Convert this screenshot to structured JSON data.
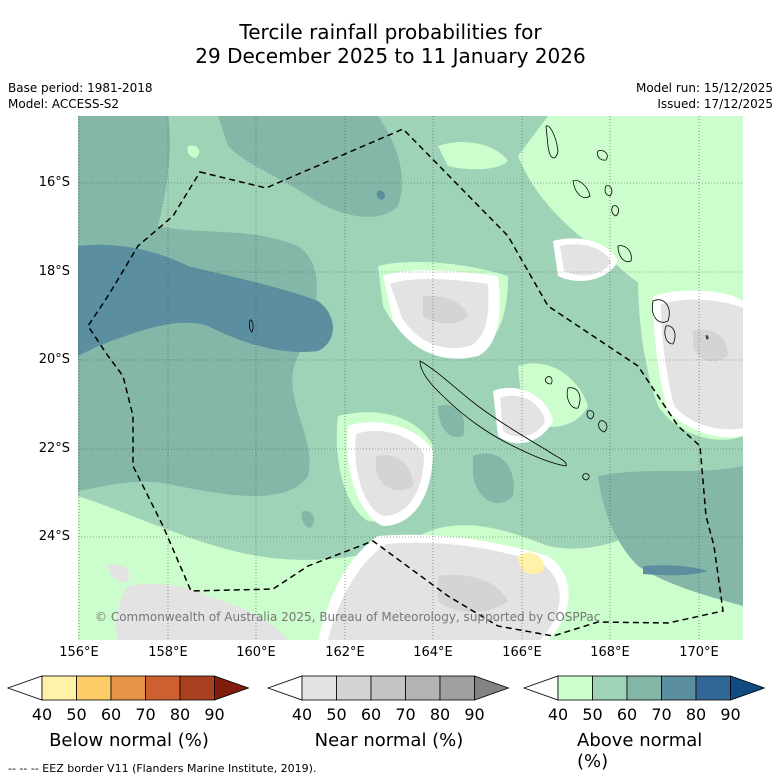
{
  "title_line1": "Tercile rainfall probabilities for",
  "title_line2": "29 December 2025 to 11 January 2026",
  "meta_left": [
    "Base period: 1981-2018",
    "Model: ACCESS-S2"
  ],
  "meta_right": [
    "Model run: 15/12/2025",
    "Issued: 17/12/2025"
  ],
  "lat_labels": [
    "16°S",
    "18°S",
    "20°S",
    "22°S",
    "24°S"
  ],
  "lon_labels": [
    "156°E",
    "158°E",
    "160°E",
    "162°E",
    "164°E",
    "166°E",
    "168°E",
    "170°E"
  ],
  "copyright": "© Commonwealth of Australia 2025, Bureau of Meteorology, supported by COSPPac",
  "colorbars": [
    {
      "title": "Below normal (%)",
      "ticks": [
        "40",
        "50",
        "60",
        "70",
        "80",
        "90"
      ],
      "colors": [
        "#fff1a8",
        "#fdcc66",
        "#e69347",
        "#cd5f30",
        "#a9401f",
        "#7f1e0d"
      ]
    },
    {
      "title": "Near normal (%)",
      "ticks": [
        "40",
        "50",
        "60",
        "70",
        "80",
        "90"
      ],
      "colors": [
        "#e3e3e3",
        "#d4d4d4",
        "#c4c4c4",
        "#b3b3b3",
        "#a0a0a0",
        "#838383"
      ]
    },
    {
      "title": "Above normal (%)",
      "ticks": [
        "40",
        "50",
        "60",
        "70",
        "80",
        "90"
      ],
      "colors": [
        "#ccfdcc",
        "#9fd3b7",
        "#84b7a8",
        "#5b8e9e",
        "#326694",
        "#124a82"
      ]
    }
  ],
  "footnote": "--  --  -- EEZ border V11 (Flanders Marine Institute, 2019).",
  "colors": {
    "grid": "#555555",
    "eez": "#000000",
    "land": "#000000"
  }
}
